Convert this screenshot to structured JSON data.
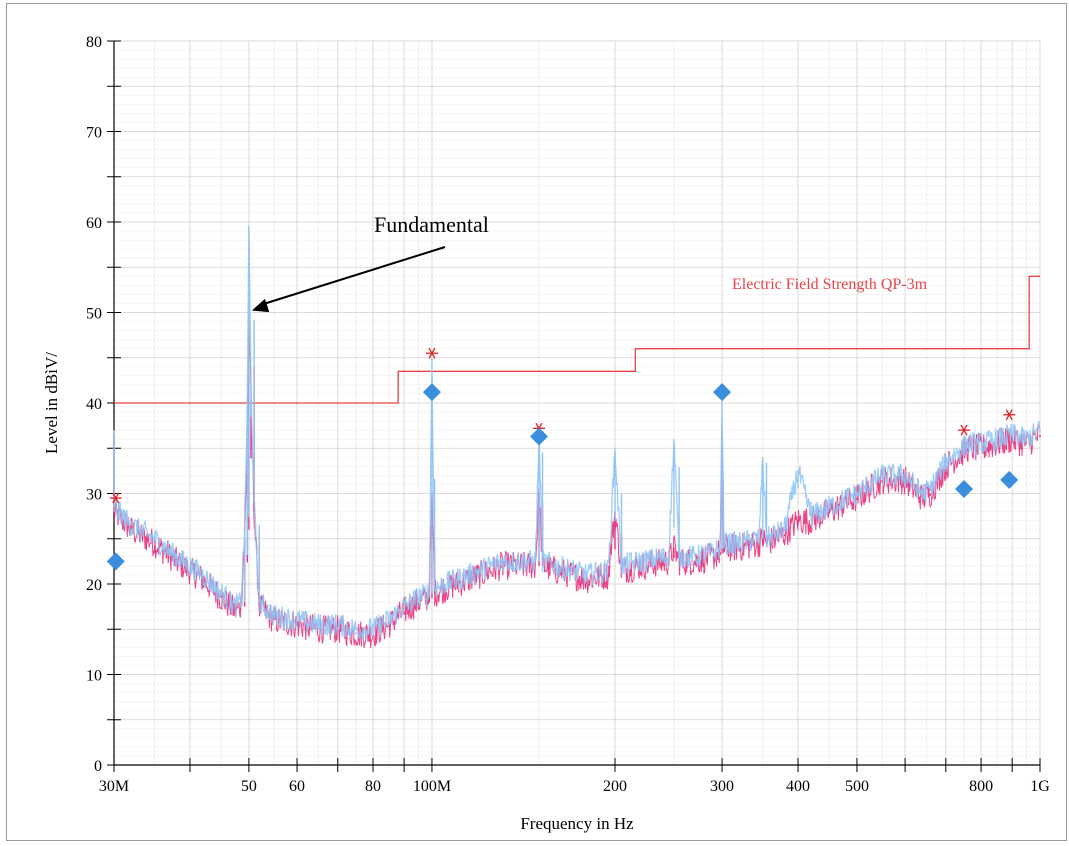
{
  "chart_data": {
    "type": "line",
    "xlabel": "Frequency in Hz",
    "ylabel": "Level in dBìV/",
    "x_scale": "log",
    "xlim": [
      30000000,
      1000000000
    ],
    "ylim": [
      0,
      80
    ],
    "grid": true,
    "x_tick_labels": [
      {
        "label": "30M",
        "value": 30000000
      },
      {
        "label": "50",
        "value": 50000000
      },
      {
        "label": "60",
        "value": 60000000
      },
      {
        "label": "80",
        "value": 80000000
      },
      {
        "label": "100M",
        "value": 100000000
      },
      {
        "label": "200",
        "value": 200000000
      },
      {
        "label": "300",
        "value": 300000000
      },
      {
        "label": "400",
        "value": 400000000
      },
      {
        "label": "500",
        "value": 500000000
      },
      {
        "label": "800",
        "value": 800000000
      },
      {
        "label": "1G",
        "value": 1000000000
      }
    ],
    "y_ticks": [
      0,
      10,
      20,
      30,
      40,
      50,
      60,
      70,
      80
    ],
    "annotations": [
      {
        "text": "Fundamental",
        "points_to": {
          "x": 50000000,
          "y": 50
        }
      }
    ],
    "limit_line": {
      "name": "Electric Field Strength QP-3m",
      "color": "#e8434a",
      "x": [
        30000000,
        88000000,
        88000000,
        216000000,
        216000000,
        960000000,
        960000000,
        1000000000
      ],
      "y": [
        40,
        40,
        43.5,
        43.5,
        46,
        46,
        54,
        54
      ]
    },
    "series": [
      {
        "color": "#e8307a",
        "x": [
          30000000,
          32000000,
          35000000,
          38000000,
          42000000,
          45000000,
          47500000,
          48500000,
          49200000,
          49700000,
          50000000,
          50400000,
          51000000,
          52000000,
          55000000,
          60000000,
          65000000,
          70000000,
          75000000,
          80000000,
          85000000,
          90000000,
          95000000,
          99000000,
          100000000,
          101000000,
          105000000,
          110000000,
          120000000,
          130000000,
          140000000,
          148000000,
          150000000,
          152000000,
          160000000,
          170000000,
          180000000,
          195000000,
          200000000,
          205000000,
          220000000,
          245000000,
          250000000,
          255000000,
          270000000,
          290000000,
          298000000,
          300000000,
          302000000,
          320000000,
          345000000,
          350000000,
          355000000,
          380000000,
          400000000,
          420000000,
          450000000,
          500000000,
          550000000,
          600000000,
          640000000,
          660000000,
          700000000,
          760000000,
          800000000,
          850000000,
          900000000,
          950000000,
          1000000000
        ],
        "y": [
          28,
          26,
          24.5,
          22.5,
          20.5,
          18.5,
          17,
          17.5,
          25,
          35,
          50,
          40,
          28,
          17.5,
          16,
          15.5,
          15,
          15,
          14.5,
          14.5,
          15.5,
          17,
          18,
          18.5,
          30,
          19,
          19.5,
          20,
          21,
          22,
          22,
          22,
          30,
          22,
          21.5,
          21,
          20.5,
          21,
          28,
          21.5,
          22,
          22.5,
          24,
          22.5,
          22.5,
          23,
          23.5,
          37,
          24,
          24,
          24.5,
          25,
          24.5,
          25.5,
          27,
          27,
          28,
          29.5,
          31.5,
          31.5,
          29.5,
          30,
          33,
          35,
          35,
          35.5,
          36,
          35.5,
          36.5
        ]
      },
      {
        "color": "#8fc3f5",
        "x": [
          30000000,
          32000000,
          35000000,
          38000000,
          42000000,
          45000000,
          47500000,
          48500000,
          49200000,
          49700000,
          50000000,
          50400000,
          51000000,
          52000000,
          55000000,
          60000000,
          65000000,
          70000000,
          75000000,
          80000000,
          85000000,
          90000000,
          95000000,
          99000000,
          100000000,
          101000000,
          105000000,
          110000000,
          120000000,
          130000000,
          140000000,
          148000000,
          150000000,
          152000000,
          160000000,
          170000000,
          180000000,
          195000000,
          200000000,
          205000000,
          220000000,
          245000000,
          250000000,
          255000000,
          270000000,
          290000000,
          298000000,
          300000000,
          302000000,
          320000000,
          345000000,
          350000000,
          355000000,
          380000000,
          400000000,
          420000000,
          450000000,
          500000000,
          550000000,
          600000000,
          640000000,
          660000000,
          700000000,
          760000000,
          800000000,
          850000000,
          900000000,
          950000000,
          1000000000
        ],
        "y": [
          28.5,
          26.5,
          25,
          23,
          21,
          19,
          17.5,
          18,
          26,
          40,
          59.5,
          42,
          29,
          18,
          16.5,
          16,
          15.5,
          15.5,
          15,
          15,
          16,
          17.5,
          18.5,
          19,
          45,
          19.5,
          20,
          20.5,
          21.5,
          22.5,
          22.5,
          22.5,
          36.5,
          22.5,
          22,
          21.5,
          21,
          21.5,
          35,
          22,
          22.5,
          23,
          36,
          23,
          23,
          23.5,
          24,
          41,
          24.5,
          24.5,
          25,
          34,
          25,
          26,
          32.5,
          27.5,
          28.5,
          30,
          32,
          32,
          30,
          30.5,
          33.5,
          35.5,
          35.5,
          36,
          36.5,
          36,
          37
        ]
      }
    ],
    "peak_markers": {
      "symbol": "*",
      "color": "#e02020",
      "points": [
        {
          "x": 30200000,
          "y": 29.5
        },
        {
          "x": 100000000,
          "y": 45.5
        },
        {
          "x": 150000000,
          "y": 37.2
        },
        {
          "x": 750000000,
          "y": 37
        },
        {
          "x": 890000000,
          "y": 38.7
        }
      ]
    },
    "qp_markers": {
      "symbol": "diamond",
      "color": "#3b8edc",
      "points": [
        {
          "x": 30200000,
          "y": 22.5
        },
        {
          "x": 100000000,
          "y": 41.2
        },
        {
          "x": 150000000,
          "y": 36.3
        },
        {
          "x": 300000000,
          "y": 41.2
        },
        {
          "x": 750000000,
          "y": 30.5
        },
        {
          "x": 890000000,
          "y": 31.5
        }
      ]
    }
  }
}
